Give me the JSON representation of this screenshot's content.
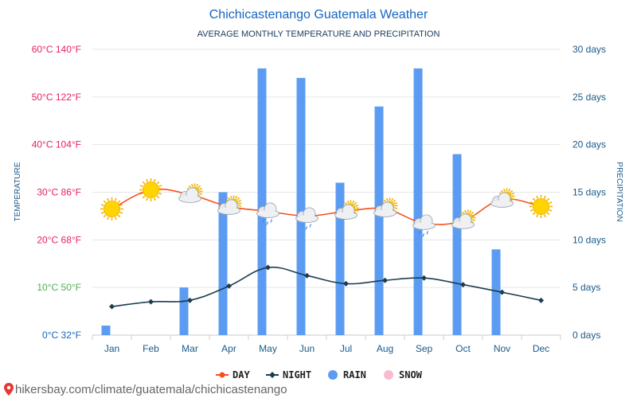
{
  "chart_data": {
    "type": "bar",
    "title": "Chichicastenango Guatemala Weather",
    "subtitle": "AVERAGE MONTHLY TEMPERATURE AND PRECIPITATION",
    "ylabel_left": "TEMPERATURE",
    "ylabel_right": "PRECIPITATION",
    "categories": [
      "Jan",
      "Feb",
      "Mar",
      "Apr",
      "May",
      "Jun",
      "Jul",
      "Aug",
      "Sep",
      "Oct",
      "Nov",
      "Dec"
    ],
    "temp_ylim": [
      0,
      60
    ],
    "precip_ylim": [
      0,
      30
    ],
    "left_ticks": [
      {
        "value": 0,
        "label": "0°C 32°F",
        "color": "#1565c0"
      },
      {
        "value": 10,
        "label": "10°C 50°F",
        "color": "#4caf50"
      },
      {
        "value": 20,
        "label": "20°C 68°F",
        "color": "#e91e63"
      },
      {
        "value": 30,
        "label": "30°C 86°F",
        "color": "#e91e63"
      },
      {
        "value": 40,
        "label": "40°C 104°F",
        "color": "#e91e63"
      },
      {
        "value": 50,
        "label": "50°C 122°F",
        "color": "#e91e63"
      },
      {
        "value": 60,
        "label": "60°C 140°F",
        "color": "#e91e63"
      }
    ],
    "right_ticks": [
      {
        "value": 0,
        "label": "0 days"
      },
      {
        "value": 5,
        "label": "5 days"
      },
      {
        "value": 10,
        "label": "10 days"
      },
      {
        "value": 15,
        "label": "15 days"
      },
      {
        "value": 20,
        "label": "20 days"
      },
      {
        "value": 25,
        "label": "25 days"
      },
      {
        "value": 30,
        "label": "30 days"
      }
    ],
    "series": [
      {
        "name": "DAY",
        "type": "line",
        "axis": "temperature",
        "color": "#f4511e",
        "values": [
          26.5,
          30.5,
          29.5,
          27,
          26,
          25,
          26,
          26.5,
          23.5,
          24,
          28.5,
          27
        ]
      },
      {
        "name": "NIGHT",
        "type": "line",
        "axis": "temperature",
        "color": "#1c3d4f",
        "values": [
          6,
          7,
          7.3,
          10.3,
          14.2,
          12.5,
          10.8,
          11.5,
          12,
          10.6,
          9,
          7.3
        ]
      },
      {
        "name": "RAIN",
        "type": "bar",
        "axis": "precipitation",
        "color": "#5b9cf2",
        "values": [
          1,
          0,
          5,
          15,
          28,
          27,
          16,
          24,
          28,
          19,
          9,
          0
        ]
      },
      {
        "name": "SNOW",
        "type": "bar",
        "axis": "precipitation",
        "color": "#f8bbd0",
        "values": [
          0,
          0,
          0,
          0,
          0,
          0,
          0,
          0,
          0,
          0,
          0,
          0
        ]
      }
    ],
    "weather_icons": [
      "sun",
      "sun",
      "sun-cloud",
      "sun-cloud",
      "cloud-rain",
      "cloud-rain",
      "sun-cloud",
      "sun-cloud",
      "cloud-rain",
      "sun-cloud",
      "sun-cloud",
      "sun"
    ],
    "legend_position": "bottom-center",
    "grid": true
  },
  "footer": {
    "url": "hikersbay.com/climate/guatemala/chichicastenango"
  },
  "colors": {
    "title": "#1565c0",
    "grid": "#e0e0e0",
    "axis_text": "#1a5a8a"
  }
}
